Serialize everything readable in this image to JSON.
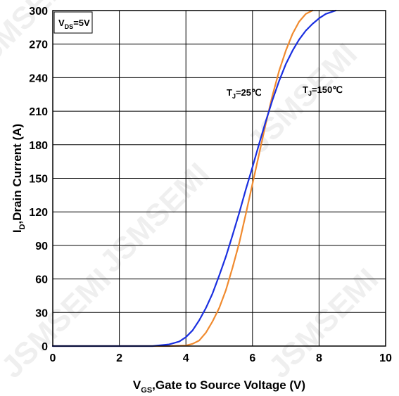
{
  "chart_data": {
    "type": "line",
    "title": "",
    "xlabel": {
      "main": "V",
      "sub": "GS",
      "rest": ",Gate to Source Voltage (V)"
    },
    "ylabel": {
      "main": "I",
      "sub": "D",
      "rest": ",Drain Current (A)"
    },
    "xlim": [
      0,
      10
    ],
    "ylim": [
      0,
      300
    ],
    "xticks": [
      0,
      2,
      4,
      6,
      8,
      10
    ],
    "yticks": [
      0,
      30,
      60,
      90,
      120,
      150,
      180,
      210,
      240,
      270,
      300
    ],
    "grid": true,
    "condition_box": {
      "main": "V",
      "sub": "DS",
      "rest": "=5V"
    },
    "watermark": "JSMSEMI",
    "series": [
      {
        "name": {
          "main": "T",
          "sub": "J",
          "rest": "=25℃"
        },
        "color": "#f08a2e",
        "x": [
          0,
          3.5,
          4.0,
          4.2,
          4.4,
          4.6,
          4.8,
          5.0,
          5.2,
          5.4,
          5.6,
          5.8,
          6.0,
          6.2,
          6.4,
          6.6,
          6.8,
          7.0,
          7.2,
          7.4,
          7.6,
          7.8
        ],
        "y": [
          0,
          0,
          0.5,
          2,
          5,
          12,
          22,
          34,
          50,
          70,
          92,
          118,
          145,
          172,
          199,
          224,
          246,
          264,
          279,
          290,
          297,
          300
        ]
      },
      {
        "name": {
          "main": "T",
          "sub": "J",
          "rest": "=150℃"
        },
        "color": "#1a2fe0",
        "x": [
          0,
          3.0,
          3.5,
          3.8,
          4.0,
          4.2,
          4.4,
          4.6,
          4.8,
          5.0,
          5.2,
          5.4,
          5.6,
          5.8,
          6.0,
          6.2,
          6.4,
          6.6,
          6.8,
          7.0,
          7.2,
          7.4,
          7.6,
          7.8,
          8.0,
          8.2,
          8.5
        ],
        "y": [
          0,
          0,
          1.5,
          4,
          8,
          14,
          23,
          34,
          47,
          63,
          80,
          99,
          119,
          140,
          160,
          181,
          201,
          220,
          237,
          252,
          264,
          274,
          282,
          288,
          293,
          297,
          300
        ]
      }
    ]
  }
}
